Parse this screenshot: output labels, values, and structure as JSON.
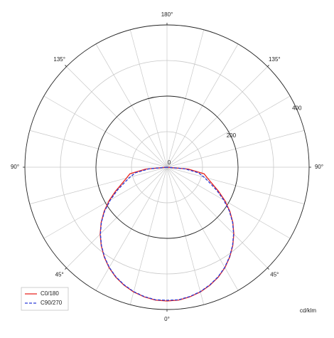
{
  "chart_data": {
    "type": "polar",
    "unit_label": "cd/klm",
    "x": [
      -90,
      -85,
      -80,
      -75,
      -70,
      -65,
      -60,
      -55,
      -50,
      -45,
      -40,
      -35,
      -30,
      -25,
      -20,
      -15,
      -10,
      -5,
      0,
      5,
      10,
      15,
      20,
      25,
      30,
      35,
      40,
      45,
      50,
      55,
      60,
      65,
      70,
      75,
      80,
      85,
      90
    ],
    "series": [
      {
        "name": "C0/180",
        "color": "#e8231e",
        "dash": false,
        "values": [
          0,
          60,
          106,
          118,
          135,
          160,
          188,
          216,
          242,
          266,
          288,
          308,
          326,
          341,
          353,
          363,
          370,
          375,
          376,
          375,
          370,
          363,
          353,
          341,
          326,
          308,
          288,
          266,
          242,
          216,
          188,
          160,
          135,
          118,
          106,
          60,
          0
        ]
      },
      {
        "name": "C90/270",
        "color": "#2b3bd6",
        "dash": true,
        "values": [
          0,
          50,
          90,
          108,
          128,
          155,
          184,
          214,
          241,
          265,
          287,
          307,
          325,
          340,
          352,
          362,
          369,
          374,
          374,
          374,
          369,
          362,
          352,
          340,
          325,
          307,
          287,
          265,
          241,
          214,
          184,
          155,
          128,
          108,
          90,
          50,
          0
        ]
      }
    ],
    "rlim": [
      0,
      400
    ],
    "rticks": [
      0,
      200,
      400
    ],
    "rminor": [
      100,
      300
    ],
    "thetaticks": [
      {
        "value": 0,
        "label": "0°"
      },
      {
        "value": 45,
        "label": "45°"
      },
      {
        "value": 90,
        "label": "90°"
      },
      {
        "value": 135,
        "label": "135°"
      },
      {
        "value": 180,
        "label": "180°"
      },
      {
        "value": -45,
        "label": "45°"
      },
      {
        "value": -90,
        "label": "90°"
      },
      {
        "value": -135,
        "label": "135°"
      }
    ],
    "thetagrid_step": 15,
    "legend": "lower left"
  }
}
